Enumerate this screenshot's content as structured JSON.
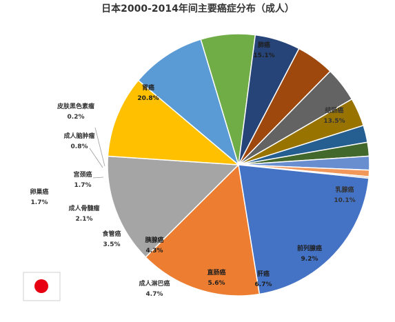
{
  "chart_data": {
    "type": "pie",
    "title": "日本2000-2014年间主要癌症分布（成人）",
    "unit": "%",
    "slices": [
      {
        "name": "肺癌",
        "value": 15.1,
        "label": "15.1%",
        "color": "#ED7D31"
      },
      {
        "name": "结肠癌",
        "value": 13.5,
        "label": "13.5%",
        "color": "#A5A5A5"
      },
      {
        "name": "乳腺癌",
        "value": 10.1,
        "label": "10.1%",
        "color": "#FFC000"
      },
      {
        "name": "前列腺癌",
        "value": 9.2,
        "label": "9.2%",
        "color": "#5B9BD5"
      },
      {
        "name": "肝癌",
        "value": 6.7,
        "label": "6.7%",
        "color": "#70AD47"
      },
      {
        "name": "直肠癌",
        "value": 5.6,
        "label": "5.6%",
        "color": "#264478"
      },
      {
        "name": "成人淋巴癌",
        "value": 4.7,
        "label": "4.7%",
        "color": "#9E480E"
      },
      {
        "name": "胰腺癌",
        "value": 4.3,
        "label": "4.3%",
        "color": "#636363"
      },
      {
        "name": "食管癌",
        "value": 3.5,
        "label": "3.5%",
        "color": "#997300"
      },
      {
        "name": "成人骨髓瘤",
        "value": 2.1,
        "label": "2.1%",
        "color": "#255E91"
      },
      {
        "name": "卵巢癌",
        "value": 1.7,
        "label": "1.7%",
        "color": "#43682B"
      },
      {
        "name": "宫颈癌",
        "value": 1.7,
        "label": "1.7%",
        "color": "#698ED0"
      },
      {
        "name": "成人脑肿瘤",
        "value": 0.8,
        "label": "0.8%",
        "color": "#F1975A"
      },
      {
        "name": "皮肤黑色素瘤",
        "value": 0.2,
        "label": "0.2%",
        "color": "#B7B7B7"
      },
      {
        "name": "胃癌",
        "value": 20.8,
        "label": "20.8%",
        "color": "#4472C4"
      }
    ]
  },
  "flag": {
    "icon": "japan-flag-icon",
    "field_color": "#ffffff",
    "disc_color": "#E60012"
  }
}
